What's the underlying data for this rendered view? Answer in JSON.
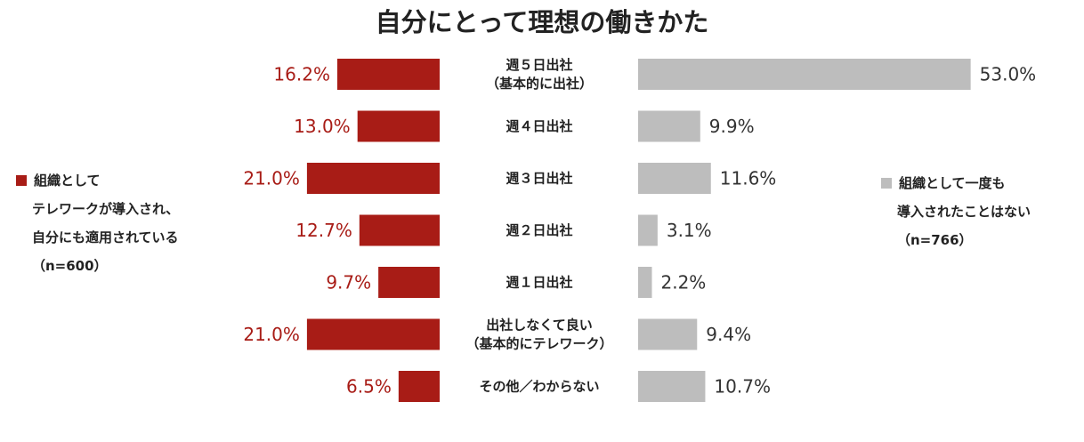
{
  "chart_data": {
    "type": "bar",
    "title": "自分にとって理想の働きかた",
    "categories": [
      [
        "週５日出社",
        "（基本的に出社）"
      ],
      [
        "週４日出社"
      ],
      [
        "週３日出社"
      ],
      [
        "週２日出社"
      ],
      [
        "週１日出社"
      ],
      [
        "出社しなくて良い",
        "（基本的にテレワーク）"
      ],
      [
        "その他／わからない"
      ]
    ],
    "series": [
      {
        "name": "組織としてテレワークが導入され、自分にも適用されている（n=600）",
        "values": [
          16.2,
          13.0,
          21.0,
          12.7,
          9.7,
          21.0,
          6.5
        ],
        "labels": [
          "16.2%",
          "13.0%",
          "21.0%",
          "12.7%",
          "9.7%",
          "21.0%",
          "6.5%"
        ],
        "color": "#a81c16"
      },
      {
        "name": "組織として一度も導入されたことはない（n=766）",
        "values": [
          53.0,
          9.9,
          11.6,
          3.1,
          2.2,
          9.4,
          10.7
        ],
        "labels": [
          "53.0%",
          "9.9%",
          "11.6%",
          "3.1%",
          "2.2%",
          "9.4%",
          "10.7%"
        ],
        "color": "#bdbdbd"
      }
    ],
    "grid": false,
    "legend_left": [
      "組織として",
      "テレワークが導入され、",
      "自分にも適用されている",
      "（n=600）"
    ],
    "legend_right": [
      "組織として一度も",
      "導入されたことはない",
      "（n=766）"
    ]
  }
}
